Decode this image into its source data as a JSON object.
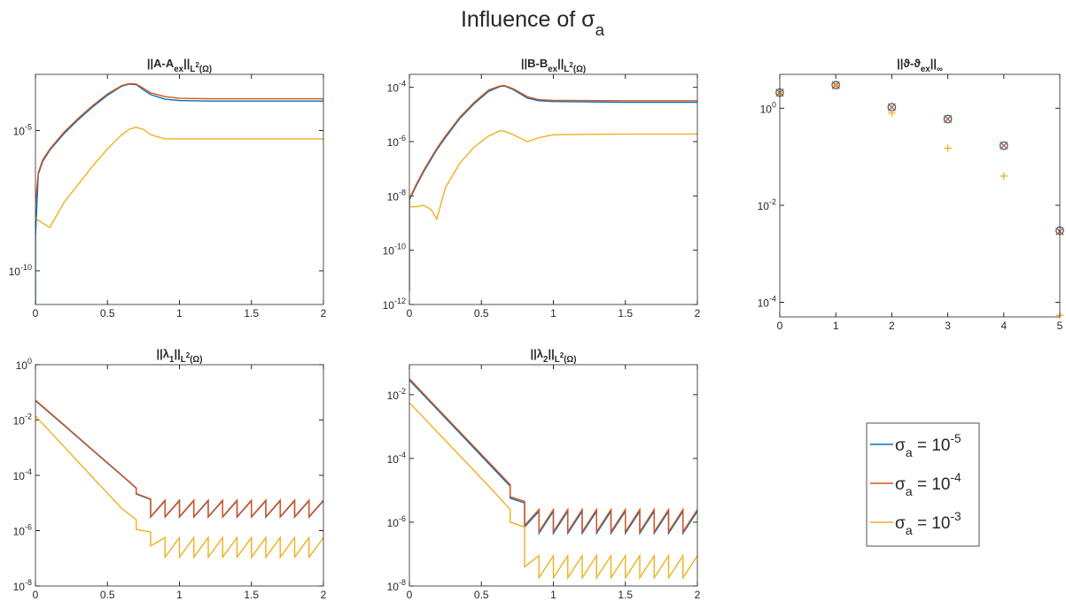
{
  "title": [
    {
      "text": "Influence of σ",
      "style": "normal"
    },
    {
      "text": "a",
      "style": "sub"
    }
  ],
  "legend": [
    {
      "color": "#0072BD",
      "name": [
        {
          "text": "σ",
          "style": "normal"
        },
        {
          "text": "a",
          "style": "sub"
        },
        {
          "text": " = 10",
          "style": "normal"
        },
        {
          "text": "-5",
          "style": "sup"
        }
      ]
    },
    {
      "color": "#D95319",
      "name": [
        {
          "text": "σ",
          "style": "normal"
        },
        {
          "text": "a",
          "style": "sub"
        },
        {
          "text": " = 10",
          "style": "normal"
        },
        {
          "text": "-4",
          "style": "sup"
        }
      ]
    },
    {
      "color": "#EDB120",
      "name": [
        {
          "text": "σ",
          "style": "normal"
        },
        {
          "text": "a",
          "style": "sub"
        },
        {
          "text": " = 10",
          "style": "normal"
        },
        {
          "text": "-3",
          "style": "sup"
        }
      ]
    }
  ],
  "chart_data": [
    {
      "type": "line",
      "title": [
        {
          "text": "||A-A",
          "style": "normal"
        },
        {
          "text": "ex",
          "style": "sub"
        },
        {
          "text": "||",
          "style": "normal"
        },
        {
          "text": "L",
          "style": "sub"
        },
        {
          "text": "2",
          "style": "subsup"
        },
        {
          "text": "(Ω)",
          "style": "sub"
        }
      ],
      "yscale": "log",
      "xlim": [
        0,
        2
      ],
      "xticks": [
        0,
        0.5,
        1,
        1.5,
        2
      ],
      "ylim": [
        6.3e-12,
        0.001
      ],
      "yticks": [
        {
          "value": 1e-10,
          "label": "10",
          "exponent": "-10"
        },
        {
          "value": 1e-05,
          "label": "10",
          "exponent": "-5"
        }
      ],
      "x": [
        0,
        0,
        0.02,
        0.05,
        0.1,
        0.2,
        0.3,
        0.4,
        0.5,
        0.6,
        0.65,
        0.7,
        0.75,
        0.8,
        0.9,
        1,
        1.2,
        1.5,
        2
      ],
      "series": [
        {
          "color": "#0072BD",
          "values": [
            6.3e-12,
            1.6e-09,
            2.8e-07,
            7.9e-07,
            2e-06,
            7.9e-06,
            2.5e-05,
            7.1e-05,
            0.00018,
            0.00038,
            0.00045,
            0.00043,
            0.00028,
            0.00019,
            0.00013,
            0.000117,
            0.000112,
            0.000112,
            0.000112
          ]
        },
        {
          "color": "#D95319",
          "values": [
            1e-08,
            2.5e-08,
            3.2e-07,
            8.9e-07,
            2.2e-06,
            8.9e-06,
            2.8e-05,
            7.9e-05,
            0.0002,
            0.0004,
            0.00047,
            0.00045,
            0.00032,
            0.00022,
            0.00016,
            0.00014,
            0.000135,
            0.000135,
            0.000135
          ]
        },
        {
          "color": "#EDB120",
          "values": [
            7.9e-09,
            7.9e-09,
            6.3e-09,
            5e-09,
            3.5e-09,
            2.8e-08,
            1.26e-07,
            5.6e-07,
            2.2e-06,
            7.1e-06,
            1.1e-05,
            1.3e-05,
            1.1e-05,
            7.1e-06,
            5e-06,
            5e-06,
            5e-06,
            5e-06,
            5e-06
          ]
        }
      ]
    },
    {
      "type": "line",
      "title": [
        {
          "text": "||B-B",
          "style": "normal"
        },
        {
          "text": "ex",
          "style": "sub"
        },
        {
          "text": "||",
          "style": "normal"
        },
        {
          "text": "L",
          "style": "sub"
        },
        {
          "text": "2",
          "style": "subsup"
        },
        {
          "text": "(Ω)",
          "style": "sub"
        }
      ],
      "yscale": "log",
      "xlim": [
        0,
        2
      ],
      "xticks": [
        0,
        0.5,
        1,
        1.5,
        2
      ],
      "ylim": [
        1e-12,
        0.0003
      ],
      "yticks": [
        {
          "value": 1e-12,
          "label": "10",
          "exponent": "-12"
        },
        {
          "value": 1e-10,
          "label": "10",
          "exponent": "-10"
        },
        {
          "value": 1e-08,
          "label": "10",
          "exponent": "-8"
        },
        {
          "value": 1e-06,
          "label": "10",
          "exponent": "-6"
        },
        {
          "value": 0.0001,
          "label": "10",
          "exponent": "-4"
        }
      ],
      "x": [
        0,
        0,
        0.05,
        0.1,
        0.15,
        0.19,
        0.25,
        0.35,
        0.45,
        0.55,
        0.63,
        0.66,
        0.72,
        0.82,
        0.9,
        1,
        1.5,
        2
      ],
      "series": [
        {
          "color": "#0072BD",
          "values": [
            3.2e-12,
            7.1e-09,
            2.5e-08,
            7.9e-08,
            2.2e-07,
            5e-07,
            1.4e-06,
            7.1e-06,
            2.5e-05,
            7.1e-05,
            0.000107,
            0.000112,
            8.3e-05,
            4e-05,
            3.2e-05,
            3e-05,
            2.8e-05,
            2.8e-05
          ]
        },
        {
          "color": "#D95319",
          "values": [
            3.2e-09,
            7.9e-09,
            2.8e-08,
            8.9e-08,
            2.5e-07,
            5.6e-07,
            1.6e-06,
            7.9e-06,
            2.8e-05,
            7.9e-05,
            0.000112,
            0.000117,
            8.9e-05,
            4.5e-05,
            3.5e-05,
            3.3e-05,
            3.2e-05,
            3.2e-05
          ]
        },
        {
          "color": "#EDB120",
          "values": [
            2e-09,
            4e-09,
            4e-09,
            4.5e-09,
            3.2e-09,
            1.4e-09,
            2e-08,
            1.6e-07,
            6.3e-07,
            1.6e-06,
            2.5e-06,
            2.4e-06,
            1.8e-06,
            1e-06,
            1.4e-06,
            1.8e-06,
            1.9e-06,
            1.9e-06
          ]
        }
      ]
    },
    {
      "type": "scatter",
      "title": [
        {
          "text": "||ϑ-ϑ",
          "style": "normal"
        },
        {
          "text": "ex",
          "style": "sub"
        },
        {
          "text": "||",
          "style": "normal"
        },
        {
          "text": "∞",
          "style": "sub"
        }
      ],
      "yscale": "log",
      "xlim": [
        0,
        5
      ],
      "xticks": [
        0,
        1,
        2,
        3,
        4,
        5
      ],
      "ylim": [
        5e-05,
        5
      ],
      "yticks": [
        {
          "value": 0.0001,
          "label": "10",
          "exponent": "-4"
        },
        {
          "value": 0.01,
          "label": "10",
          "exponent": "-2"
        },
        {
          "value": 1,
          "label": "10",
          "exponent": "0"
        }
      ],
      "x": [
        0,
        1,
        2,
        3,
        4,
        5
      ],
      "series": [
        {
          "color": "#0072BD",
          "marker": "o",
          "values": [
            2.1,
            3.0,
            1.05,
            0.6,
            0.17,
            0.003
          ]
        },
        {
          "color": "#D95319",
          "marker": "x",
          "values": [
            2.1,
            3.0,
            1.05,
            0.6,
            0.17,
            0.0029
          ]
        },
        {
          "color": "#EDB120",
          "marker": "+",
          "values": [
            2.1,
            3.0,
            0.8,
            0.15,
            0.04,
            5.4e-05
          ]
        }
      ]
    },
    {
      "type": "line",
      "title": [
        {
          "text": "||λ",
          "style": "normal"
        },
        {
          "text": "1",
          "style": "sub"
        },
        {
          "text": "||",
          "style": "normal"
        },
        {
          "text": "L",
          "style": "sub"
        },
        {
          "text": "2",
          "style": "subsup"
        },
        {
          "text": "(Ω)",
          "style": "sub"
        }
      ],
      "yscale": "log",
      "xlim": [
        0,
        2
      ],
      "xticks": [
        0,
        0.5,
        1,
        1.5,
        2
      ],
      "ylim": [
        1e-08,
        1
      ],
      "yticks": [
        {
          "value": 1e-08,
          "label": "10",
          "exponent": "-8"
        },
        {
          "value": 1e-06,
          "label": "10",
          "exponent": "-6"
        },
        {
          "value": 0.0001,
          "label": "10",
          "exponent": "-4"
        },
        {
          "value": 0.01,
          "label": "10",
          "exponent": "-2"
        },
        {
          "value": 1,
          "label": "10",
          "exponent": "0"
        }
      ],
      "x": [
        0,
        0.2,
        0.4,
        0.6,
        0.7,
        0.7,
        0.8,
        0.8,
        0.9,
        0.9,
        1,
        1,
        1.1,
        1.1,
        1.2,
        1.2,
        1.3,
        1.3,
        1.4,
        1.4,
        1.5,
        1.5,
        1.6,
        1.6,
        1.7,
        1.7,
        1.8,
        1.8,
        1.9,
        1.9,
        2
      ],
      "series": [
        {
          "color": "#0072BD",
          "values": [
            0.05,
            0.0063,
            0.00078,
            9.8e-05,
            3.4e-05,
            2.1e-05,
            1.35e-05,
            3.1e-06,
            1.2e-05,
            3.1e-06,
            1.2e-05,
            3.1e-06,
            1.2e-05,
            3.1e-06,
            1.2e-05,
            3.1e-06,
            1.2e-05,
            3.1e-06,
            1.2e-05,
            3.1e-06,
            1.2e-05,
            3.1e-06,
            1.2e-05,
            3.1e-06,
            1.2e-05,
            3.1e-06,
            1.2e-05,
            3.1e-06,
            1.2e-05,
            3.1e-06,
            1.2e-05
          ]
        },
        {
          "color": "#D95319",
          "values": [
            0.0525,
            0.0066,
            0.00081,
            0.000102,
            3.5e-05,
            2.2e-05,
            1.4e-05,
            3.2e-06,
            1.26e-05,
            3.2e-06,
            1.26e-05,
            3.2e-06,
            1.26e-05,
            3.2e-06,
            1.26e-05,
            3.2e-06,
            1.26e-05,
            3.2e-06,
            1.26e-05,
            3.2e-06,
            1.26e-05,
            3.2e-06,
            1.26e-05,
            3.2e-06,
            1.26e-05,
            3.2e-06,
            1.26e-05,
            3.2e-06,
            1.26e-05,
            3.2e-06,
            1.26e-05
          ]
        },
        {
          "color": "#EDB120",
          "values": [
            0.014,
            0.00107,
            8.1e-05,
            6.3e-06,
            2.5e-06,
            1.1e-06,
            8.9e-07,
            2.8e-07,
            5.6e-07,
            1.1e-07,
            5.6e-07,
            1.1e-07,
            5.6e-07,
            1.1e-07,
            5.6e-07,
            1.1e-07,
            5.6e-07,
            1.1e-07,
            5.6e-07,
            1.1e-07,
            5.6e-07,
            1.1e-07,
            5.6e-07,
            1.1e-07,
            5.6e-07,
            1.1e-07,
            5.6e-07,
            1.1e-07,
            5.6e-07,
            1.1e-07,
            5.6e-07
          ]
        }
      ]
    },
    {
      "type": "line",
      "title": [
        {
          "text": "||λ",
          "style": "normal"
        },
        {
          "text": "2",
          "style": "sub"
        },
        {
          "text": "||",
          "style": "normal"
        },
        {
          "text": "L",
          "style": "sub"
        },
        {
          "text": "2",
          "style": "subsup"
        },
        {
          "text": "(Ω)",
          "style": "sub"
        }
      ],
      "yscale": "log",
      "xlim": [
        0,
        2
      ],
      "xticks": [
        0,
        0.5,
        1,
        1.5,
        2
      ],
      "ylim": [
        1e-08,
        0.087
      ],
      "yticks": [
        {
          "value": 1e-08,
          "label": "10",
          "exponent": "-8"
        },
        {
          "value": 1e-06,
          "label": "10",
          "exponent": "-6"
        },
        {
          "value": 0.0001,
          "label": "10",
          "exponent": "-4"
        },
        {
          "value": 0.01,
          "label": "10",
          "exponent": "-2"
        }
      ],
      "x": [
        0,
        0.2,
        0.4,
        0.6,
        0.7,
        0.7,
        0.8,
        0.8,
        0.9,
        0.9,
        1,
        1,
        1.1,
        1.1,
        1.2,
        1.2,
        1.3,
        1.3,
        1.4,
        1.4,
        1.5,
        1.5,
        1.6,
        1.6,
        1.7,
        1.7,
        1.8,
        1.8,
        1.9,
        1.9,
        2
      ],
      "series": [
        {
          "color": "#0072BD",
          "values": [
            0.0285,
            0.0032,
            0.00036,
            4e-05,
            1.35e-05,
            5.7e-06,
            4e-06,
            7.1e-07,
            2.2e-06,
            4.5e-07,
            2.2e-06,
            4.5e-07,
            2.2e-06,
            4.5e-07,
            2.2e-06,
            4.5e-07,
            2.2e-06,
            4.5e-07,
            2.2e-06,
            4.5e-07,
            2.2e-06,
            4.5e-07,
            2.2e-06,
            4.5e-07,
            2.2e-06,
            4.5e-07,
            2.2e-06,
            4.5e-07,
            2.2e-06,
            4.5e-07,
            2.2e-06
          ]
        },
        {
          "color": "#D95319",
          "values": [
            0.0316,
            0.0035,
            0.0004,
            4.5e-05,
            1.5e-05,
            6.3e-06,
            4.5e-06,
            7.9e-07,
            2.5e-06,
            5e-07,
            2.5e-06,
            5e-07,
            2.5e-06,
            5e-07,
            2.5e-06,
            5e-07,
            2.5e-06,
            5e-07,
            2.5e-06,
            5e-07,
            2.5e-06,
            5e-07,
            2.5e-06,
            5e-07,
            2.5e-06,
            5e-07,
            2.5e-06,
            5e-07,
            2.5e-06,
            5e-07,
            2.5e-06
          ]
        },
        {
          "color": "#EDB120",
          "values": [
            0.0056,
            0.00063,
            7.1e-05,
            7.9e-06,
            2.5e-06,
            1e-06,
            7.1e-07,
            4e-08,
            8.9e-08,
            1.8e-08,
            8.9e-08,
            1.8e-08,
            8.9e-08,
            1.8e-08,
            8.9e-08,
            1.8e-08,
            8.9e-08,
            1.8e-08,
            8.9e-08,
            1.8e-08,
            8.9e-08,
            1.8e-08,
            8.9e-08,
            1.8e-08,
            8.9e-08,
            1.8e-08,
            8.9e-08,
            1.8e-08,
            8.9e-08,
            1.8e-08,
            8.9e-08
          ]
        }
      ]
    }
  ]
}
